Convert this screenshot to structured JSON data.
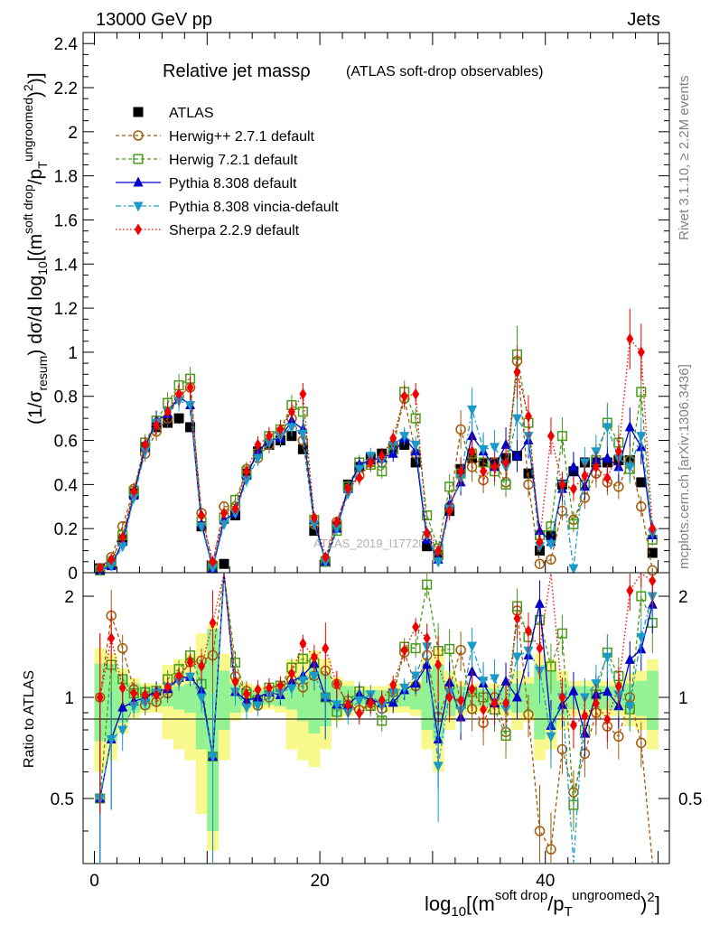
{
  "header": {
    "left": "13000 GeV pp",
    "right": "Jets"
  },
  "side_text": {
    "top": "Rivet 3.1.10, ≥ 2.2M events",
    "bottom": "mcplots.cern.ch [arXiv:1306.3436]"
  },
  "watermark": "ATLAS_2019_I1772062",
  "chart_data": [
    {
      "type": "line",
      "panel": "main",
      "title_main": "Relative jet massρ",
      "title_sub": "(ATLAS soft-drop observables)",
      "ylabel": "(1/σresum) dσ/d log10[(m soft drop/pT ungroomed)2)]",
      "xlabel": "",
      "xlim": [
        -1,
        51
      ],
      "ylim": [
        0,
        2.45
      ],
      "yticks": [
        "0",
        "0.2",
        "0.4",
        "0.6",
        "0.8",
        "1",
        "1.2",
        "1.4",
        "1.6",
        "1.8",
        "2",
        "2.2",
        "2.4"
      ],
      "x": [
        0.5,
        1.5,
        2.5,
        3.5,
        4.5,
        5.5,
        6.5,
        7.5,
        8.5,
        9.5,
        10.5,
        11.5,
        12.5,
        13.5,
        14.5,
        15.5,
        16.5,
        17.5,
        18.5,
        19.5,
        20.5,
        21.5,
        22.5,
        23.5,
        24.5,
        25.5,
        26.5,
        27.5,
        28.5,
        29.5,
        30.5,
        31.5,
        32.5,
        33.5,
        34.5,
        35.5,
        36.5,
        37.5,
        38.5,
        39.5,
        40.5,
        41.5,
        42.5,
        43.5,
        44.5,
        45.5,
        46.5,
        47.5,
        48.5,
        49.5
      ],
      "legend_position": "top-left",
      "series": [
        {
          "name": "ATLAS",
          "color": "#000000",
          "dash": "none",
          "marker": "square-filled",
          "values": [
            0.02,
            0.04,
            0.15,
            0.36,
            0.57,
            0.66,
            0.68,
            0.7,
            0.66,
            0.21,
            0.03,
            0.04,
            0.26,
            0.45,
            0.55,
            0.58,
            0.6,
            0.62,
            0.56,
            0.19,
            0.05,
            0.21,
            0.4,
            0.48,
            0.52,
            0.54,
            0.56,
            0.58,
            0.5,
            0.12,
            0.08,
            0.28,
            0.47,
            0.52,
            0.5,
            0.5,
            0.52,
            0.53,
            0.45,
            0.1,
            0.17,
            0.4,
            0.46,
            0.5,
            0.5,
            0.5,
            0.51,
            0.51,
            0.41,
            0.09
          ]
        },
        {
          "name": "Herwig++ 2.7.1 default",
          "color": "#a05a0a",
          "dash": "4,3",
          "marker": "circle-open",
          "values": [
            0.02,
            0.07,
            0.21,
            0.38,
            0.54,
            0.64,
            0.7,
            0.8,
            0.84,
            0.27,
            0.04,
            0.3,
            0.3,
            0.47,
            0.52,
            0.58,
            0.64,
            0.7,
            0.6,
            0.22,
            0.06,
            0.23,
            0.38,
            0.44,
            0.5,
            0.5,
            0.58,
            0.79,
            0.54,
            0.16,
            0.07,
            0.3,
            0.65,
            0.48,
            0.42,
            0.5,
            0.41,
            0.96,
            0.4,
            0.04,
            0.06,
            0.28,
            0.24,
            0.34,
            0.45,
            0.41,
            0.39,
            0.51,
            0.3,
            0.01
          ]
        },
        {
          "name": "Herwig 7.2.1 default",
          "color": "#4a9a1a",
          "dash": "4,3",
          "marker": "square-open",
          "values": [
            0.01,
            0.05,
            0.17,
            0.37,
            0.59,
            0.69,
            0.77,
            0.85,
            0.88,
            0.23,
            0.02,
            0.25,
            0.33,
            0.46,
            0.54,
            0.62,
            0.65,
            0.76,
            0.73,
            0.24,
            0.05,
            0.19,
            0.39,
            0.5,
            0.49,
            0.46,
            0.56,
            0.82,
            0.7,
            0.26,
            0.11,
            0.39,
            0.45,
            0.54,
            0.5,
            0.46,
            0.4,
            0.99,
            0.68,
            0.17,
            0.21,
            0.62,
            0.22,
            0.4,
            0.51,
            0.68,
            0.59,
            0.47,
            0.82,
            0.15
          ]
        },
        {
          "name": "Pythia 8.308 default",
          "color": "#0000c8",
          "dash": "none",
          "marker": "triangle-up",
          "values": [
            0.01,
            0.03,
            0.14,
            0.35,
            0.57,
            0.69,
            0.72,
            0.8,
            0.76,
            0.22,
            0.02,
            0.24,
            0.27,
            0.44,
            0.55,
            0.6,
            0.61,
            0.69,
            0.65,
            0.24,
            0.05,
            0.2,
            0.38,
            0.49,
            0.51,
            0.52,
            0.54,
            0.61,
            0.55,
            0.15,
            0.06,
            0.31,
            0.41,
            0.62,
            0.55,
            0.48,
            0.58,
            0.53,
            0.6,
            0.19,
            0.14,
            0.38,
            0.48,
            0.39,
            0.51,
            0.52,
            0.48,
            0.66,
            0.57,
            0.17
          ]
        },
        {
          "name": "Pythia 8.308 vincia-default",
          "color": "#1a9ac8",
          "dash": "6,3,2,3",
          "marker": "triangle-down",
          "values": [
            0.01,
            0.03,
            0.12,
            0.34,
            0.55,
            0.68,
            0.73,
            0.78,
            0.76,
            0.21,
            0.02,
            0.22,
            0.27,
            0.42,
            0.52,
            0.59,
            0.62,
            0.66,
            0.63,
            0.22,
            0.05,
            0.2,
            0.36,
            0.47,
            0.53,
            0.51,
            0.58,
            0.62,
            0.58,
            0.17,
            0.05,
            0.29,
            0.43,
            0.74,
            0.56,
            0.57,
            0.48,
            0.7,
            0.62,
            0.12,
            0.13,
            0.4,
            0.02,
            0.5,
            0.55,
            0.66,
            0.52,
            0.48,
            0.62,
            0.18
          ]
        },
        {
          "name": "Sherpa 2.2.9 default",
          "color": "#f00000",
          "dash": "1.5,2.5",
          "marker": "diamond",
          "values": [
            0.02,
            0.06,
            0.16,
            0.37,
            0.58,
            0.67,
            0.73,
            0.81,
            0.84,
            0.26,
            0.05,
            0.27,
            0.29,
            0.46,
            0.58,
            0.62,
            0.65,
            0.73,
            0.81,
            0.25,
            0.07,
            0.23,
            0.38,
            0.43,
            0.5,
            0.53,
            0.61,
            0.8,
            0.81,
            0.18,
            0.1,
            0.28,
            0.46,
            0.55,
            0.46,
            0.48,
            0.5,
            0.91,
            0.71,
            0.14,
            0.62,
            0.4,
            0.38,
            0.44,
            0.48,
            0.43,
            0.55,
            1.06,
            1.0,
            0.2
          ]
        }
      ]
    },
    {
      "type": "line",
      "panel": "ratio",
      "ylabel": "Ratio to ATLAS",
      "xlabel": "log10[(m soft drop/pT ungroomed)2]",
      "xlim": [
        -1,
        51
      ],
      "ylim": [
        0.32,
        2.35
      ],
      "log_y": true,
      "yticks": [
        "0.5",
        "1",
        "2"
      ],
      "xticks": [
        "0",
        "20",
        "40"
      ],
      "band_inner_halfwidth": [
        0.26,
        0.26,
        0.16,
        0.1,
        0.08,
        0.06,
        0.06,
        0.08,
        0.1,
        0.3,
        0.6,
        0.2,
        0.1,
        0.06,
        0.05,
        0.05,
        0.06,
        0.08,
        0.15,
        0.22,
        0.18,
        0.12,
        0.08,
        0.05,
        0.05,
        0.05,
        0.06,
        0.06,
        0.08,
        0.2,
        0.25,
        0.12,
        0.08,
        0.06,
        0.06,
        0.06,
        0.08,
        0.1,
        0.1,
        0.25,
        0.2,
        0.12,
        0.08,
        0.08,
        0.08,
        0.08,
        0.08,
        0.1,
        0.12,
        0.2
      ],
      "band_outer_halfwidth": [
        0.4,
        0.35,
        0.22,
        0.14,
        0.1,
        0.1,
        0.25,
        0.3,
        0.35,
        0.55,
        0.65,
        0.35,
        0.15,
        0.1,
        0.08,
        0.08,
        0.1,
        0.3,
        0.35,
        0.38,
        0.3,
        0.15,
        0.12,
        0.08,
        0.08,
        0.08,
        0.1,
        0.1,
        0.12,
        0.3,
        0.4,
        0.2,
        0.12,
        0.1,
        0.1,
        0.1,
        0.12,
        0.2,
        0.15,
        0.35,
        0.3,
        0.2,
        0.12,
        0.12,
        0.12,
        0.12,
        0.12,
        0.18,
        0.2,
        0.3
      ],
      "inner_band_color": "#93f293",
      "outer_band_color": "#f8f88c"
    }
  ]
}
